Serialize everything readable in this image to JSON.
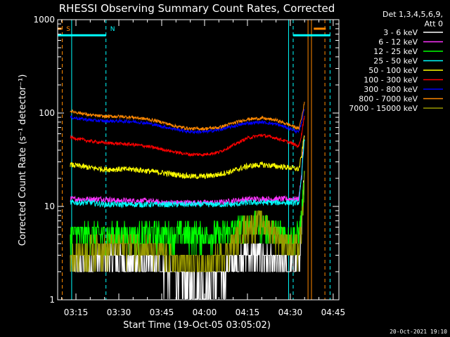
{
  "chart_data": {
    "type": "line",
    "title": "RHESSI Observing Summary Count Rates, Corrected",
    "ylabel": "Corrected Count Rate (s⁻¹ detector⁻¹)",
    "xlabel": "Start Time (19-Oct-05 03:05:02)",
    "ylim": [
      1,
      1000
    ],
    "yscale": "log",
    "xlim_minutes": [
      3.6,
      102.0
    ],
    "y_ticks": [
      {
        "value": 1,
        "label": "1"
      },
      {
        "value": 10,
        "label": "10"
      },
      {
        "value": 100,
        "label": "100"
      },
      {
        "value": 1000,
        "label": "1000"
      }
    ],
    "x_ticks": [
      {
        "min": 10,
        "label": "03:15"
      },
      {
        "min": 25,
        "label": "03:30"
      },
      {
        "min": 40,
        "label": "03:45"
      },
      {
        "min": 55,
        "label": "04:00"
      },
      {
        "min": 70,
        "label": "04:15"
      },
      {
        "min": 85,
        "label": "04:30"
      },
      {
        "min": 100,
        "label": "04:45"
      }
    ],
    "legend_header": [
      "Det 1,3,4,5,6,9,",
      "Att 0"
    ],
    "legend_placement": "right",
    "series": [
      {
        "name": "3 - 6 keV",
        "color": "#ffffff",
        "x": [
          8,
          15,
          20,
          25,
          30,
          35,
          40,
          45,
          50,
          55,
          60,
          65,
          70,
          75,
          80,
          85,
          88,
          89,
          90
        ],
        "y": [
          2.5,
          2.6,
          2.8,
          2.7,
          2.6,
          2.5,
          2.2,
          1.8,
          1.5,
          1.4,
          1.7,
          2.4,
          3.2,
          3.0,
          2.4,
          2.3,
          2.5,
          6,
          20
        ]
      },
      {
        "name": "6 - 12 keV",
        "color": "#ff33ff",
        "x": [
          8,
          15,
          20,
          25,
          30,
          35,
          40,
          45,
          50,
          55,
          60,
          65,
          70,
          75,
          80,
          85,
          88,
          89,
          90
        ],
        "y": [
          12,
          12,
          12,
          11.5,
          11.5,
          11.5,
          11,
          11,
          11,
          11,
          11,
          11.5,
          12,
          12,
          12,
          12,
          12,
          22,
          60
        ]
      },
      {
        "name": "12 - 25 keV",
        "color": "#00ff00",
        "x": [
          8,
          15,
          20,
          25,
          30,
          35,
          40,
          45,
          50,
          55,
          60,
          65,
          70,
          75,
          80,
          85,
          88,
          89,
          90
        ],
        "y": [
          5,
          5,
          5,
          5,
          5,
          5,
          5,
          5,
          5,
          5,
          5,
          5.5,
          6.5,
          6.5,
          5.5,
          5,
          5,
          8,
          20
        ]
      },
      {
        "name": "25 - 50 keV",
        "color": "#00ffff",
        "x": [
          8,
          15,
          20,
          25,
          30,
          35,
          40,
          45,
          50,
          55,
          60,
          65,
          70,
          75,
          80,
          85,
          88,
          89,
          90
        ],
        "y": [
          11,
          11,
          10.5,
          10.5,
          10.5,
          10.5,
          10.5,
          10.5,
          10.5,
          10.5,
          10.5,
          10.5,
          11,
          11,
          11,
          11,
          11,
          20,
          55
        ]
      },
      {
        "name": "50 - 100 keV",
        "color": "#ffff00",
        "x": [
          8,
          15,
          20,
          25,
          30,
          35,
          40,
          45,
          50,
          55,
          60,
          65,
          70,
          75,
          80,
          85,
          88,
          89,
          90
        ],
        "y": [
          28,
          26,
          25,
          25,
          25,
          24,
          23,
          22,
          21,
          21,
          22,
          24,
          27,
          28,
          27,
          26,
          25,
          35,
          60
        ]
      },
      {
        "name": "100 - 300 keV",
        "color": "#ff0000",
        "x": [
          8,
          15,
          20,
          25,
          30,
          35,
          40,
          45,
          50,
          55,
          60,
          65,
          70,
          75,
          80,
          85,
          88,
          89,
          90
        ],
        "y": [
          55,
          50,
          48,
          47,
          46,
          44,
          41,
          38,
          36,
          36,
          38,
          45,
          54,
          58,
          54,
          48,
          44,
          60,
          95
        ]
      },
      {
        "name": "300 - 800 keV",
        "color": "#0000ff",
        "x": [
          8,
          15,
          20,
          25,
          30,
          35,
          40,
          45,
          50,
          55,
          60,
          65,
          70,
          75,
          80,
          85,
          88,
          89,
          90
        ],
        "y": [
          90,
          84,
          82,
          82,
          81,
          78,
          72,
          67,
          63,
          63,
          66,
          72,
          78,
          80,
          76,
          68,
          62,
          80,
          115
        ]
      },
      {
        "name": "800 - 7000 keV",
        "color": "#ff8800",
        "x": [
          8,
          15,
          20,
          25,
          30,
          35,
          40,
          45,
          50,
          55,
          60,
          65,
          70,
          75,
          80,
          85,
          88,
          89,
          90
        ],
        "y": [
          105,
          95,
          92,
          92,
          90,
          86,
          80,
          72,
          68,
          68,
          70,
          78,
          86,
          88,
          84,
          74,
          68,
          90,
          130
        ]
      },
      {
        "name": "7000 - 15000 keV",
        "color": "#999900",
        "x": [
          8,
          15,
          20,
          25,
          30,
          35,
          40,
          45,
          50,
          55,
          60,
          65,
          70,
          75,
          80,
          85,
          88,
          89,
          90
        ],
        "y": [
          3.2,
          3.4,
          3.6,
          3.7,
          3.8,
          3.6,
          3.0,
          2.6,
          2.4,
          2.3,
          2.8,
          4.0,
          6.5,
          7.0,
          5.0,
          3.8,
          3.5,
          6,
          18
        ]
      }
    ],
    "vertical_markers": [
      {
        "min": 5.2,
        "color": "#ff8800",
        "style": "dashed"
      },
      {
        "min": 8.5,
        "color": "#00ffff",
        "style": "solid"
      },
      {
        "min": 20.5,
        "color": "#00ffff",
        "style": "dashed"
      },
      {
        "min": 84.4,
        "color": "#00ffff",
        "style": "solid"
      },
      {
        "min": 86.0,
        "color": "#00ffff",
        "style": "dashed"
      },
      {
        "min": 91.2,
        "color": "#ff8800",
        "style": "solid"
      },
      {
        "min": 92.4,
        "color": "#ff8800",
        "style": "solid"
      },
      {
        "min": 97.1,
        "color": "#ff8800",
        "style": "dashed"
      },
      {
        "min": 98.9,
        "color": "#00ffff",
        "style": "dashed"
      }
    ],
    "top_bars": [
      {
        "from": 3.6,
        "to": 20.5,
        "value": 680,
        "color": "#00ffff"
      },
      {
        "from": 86.0,
        "to": 99.0,
        "value": 680,
        "color": "#00ffff"
      },
      {
        "from": 3.6,
        "to": 5.0,
        "value": 800,
        "color": "#ff8800"
      },
      {
        "from": 93.2,
        "to": 97.4,
        "value": 800,
        "color": "#ff8800"
      }
    ],
    "flags": [
      {
        "label": "S",
        "min": 6.6,
        "color": "#ff8800"
      },
      {
        "label": "N",
        "min": 22.0,
        "color": "#00ffff"
      }
    ]
  },
  "footer_timestamp": "20-Oct-2021 19:10"
}
